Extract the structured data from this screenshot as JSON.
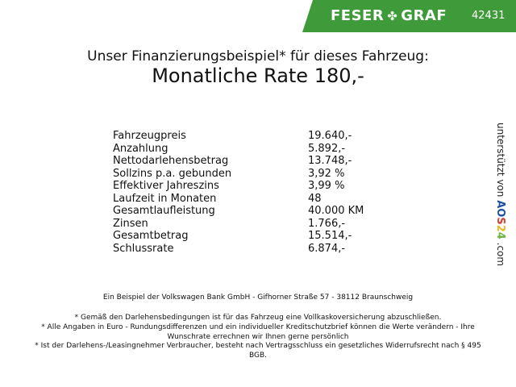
{
  "header": {
    "brand": "FESER",
    "brand2": "GRAF",
    "dealer_id": "42431",
    "brand_color": "#3f9a3a"
  },
  "title": {
    "line1": "Unser Finanzierungsbeispiel* für dieses Fahrzeug:",
    "line2": "Monatliche Rate 180,-"
  },
  "rows": [
    {
      "label": "Fahrzeugpreis",
      "value": "19.640,-"
    },
    {
      "label": "Anzahlung",
      "value": "5.892,-"
    },
    {
      "label": "Nettodarlehensbetrag",
      "value": "13.748,-"
    },
    {
      "label": "Sollzins p.a. gebunden",
      "value": "3,92 %"
    },
    {
      "label": "Effektiver Jahreszins",
      "value": "3,99 %"
    },
    {
      "label": "Laufzeit in Monaten",
      "value": "48"
    },
    {
      "label": "Gesamtlaufleistung",
      "value": "40.000 KM"
    },
    {
      "label": "Zinsen",
      "value": "1.766,-"
    },
    {
      "label": "Gesamtbetrag",
      "value": "15.514,-"
    },
    {
      "label": "Schlussrate",
      "value": "6.874,-"
    }
  ],
  "side": {
    "text": "unterstützt von",
    "logo": [
      "A",
      "O",
      "S",
      "2",
      "4"
    ],
    "suffix": ".com"
  },
  "footer": {
    "bank": "Ein Beispiel der Volkswagen Bank GmbH - Gifhorner Straße 57 - 38112 Braunschweig",
    "note1": "* Gemäß den Darlehensbedingungen ist für das Fahrzeug eine Vollkaskoversicherung abzuschließen.",
    "note2": "* Alle Angaben in Euro - Rundungsdifferenzen und ein individueller Kreditschutzbrief können die Werte verändern - Ihre Wunschrate errechnen wir Ihnen gerne persönlich",
    "note3": "* Ist der Darlehens-/Leasingnehmer Verbraucher, besteht nach Vertragsschluss ein gesetzliches Widerrufsrecht nach § 495 BGB."
  }
}
